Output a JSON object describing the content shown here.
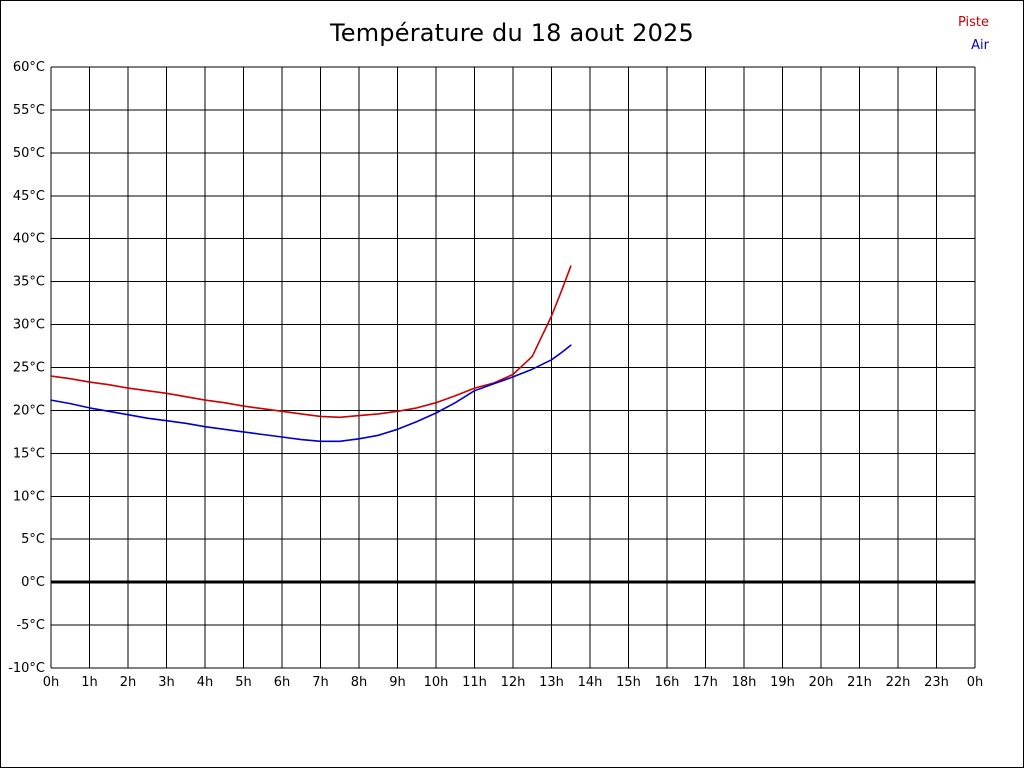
{
  "chart_data": {
    "type": "line",
    "title": "Température du 18 aout 2025",
    "xlabel": "",
    "ylabel": "",
    "ylim": [
      -10,
      60
    ],
    "y_tick_step": 5,
    "y_tick_labels": [
      "60°C",
      "55°C",
      "50°C",
      "45°C",
      "40°C",
      "35°C",
      "30°C",
      "25°C",
      "20°C",
      "15°C",
      "10°C",
      "5°C",
      "0°C",
      "-5°C",
      "-10°C"
    ],
    "x_range": [
      0,
      24
    ],
    "x_tick_labels": [
      "0h",
      "1h",
      "2h",
      "3h",
      "4h",
      "5h",
      "6h",
      "7h",
      "8h",
      "9h",
      "10h",
      "11h",
      "12h",
      "13h",
      "14h",
      "15h",
      "16h",
      "17h",
      "18h",
      "19h",
      "20h",
      "21h",
      "22h",
      "23h",
      "0h"
    ],
    "grid": true,
    "zero_line": true,
    "legend_position": "top-right",
    "series": [
      {
        "name": "Piste",
        "color": "#cc0000",
        "x": [
          0,
          0.5,
          1,
          1.5,
          2,
          2.5,
          3,
          3.5,
          4,
          4.5,
          5,
          5.5,
          6,
          6.5,
          7,
          7.5,
          8,
          8.5,
          9,
          9.5,
          10,
          10.5,
          11,
          11.5,
          12,
          12.5,
          13,
          13.25,
          13.5
        ],
        "values": [
          24.0,
          23.7,
          23.3,
          23.0,
          22.6,
          22.3,
          22.0,
          21.6,
          21.2,
          20.9,
          20.5,
          20.2,
          19.9,
          19.6,
          19.3,
          19.2,
          19.4,
          19.6,
          19.9,
          20.3,
          20.9,
          21.7,
          22.6,
          23.2,
          24.2,
          26.3,
          31.0,
          33.8,
          36.8
        ]
      },
      {
        "name": "Air",
        "color": "#0000cc",
        "x": [
          0,
          0.5,
          1,
          1.5,
          2,
          2.5,
          3,
          3.5,
          4,
          4.5,
          5,
          5.5,
          6,
          6.5,
          7,
          7.5,
          8,
          8.5,
          9,
          9.5,
          10,
          10.5,
          11,
          11.5,
          12,
          12.5,
          13,
          13.25,
          13.5
        ],
        "values": [
          21.2,
          20.8,
          20.3,
          19.9,
          19.5,
          19.1,
          18.8,
          18.5,
          18.1,
          17.8,
          17.5,
          17.2,
          16.9,
          16.6,
          16.4,
          16.4,
          16.7,
          17.1,
          17.8,
          18.7,
          19.7,
          20.9,
          22.3,
          23.1,
          23.9,
          24.8,
          25.9,
          26.7,
          27.6
        ]
      }
    ]
  }
}
